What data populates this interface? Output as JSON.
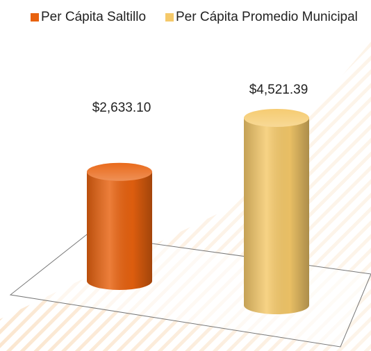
{
  "chart_data": {
    "type": "bar",
    "series": [
      {
        "name": "Per Cápita Saltillo",
        "color": "#e8620f",
        "values": [
          2633.1
        ],
        "value_labels": [
          "$2,633.10"
        ]
      },
      {
        "name": "Per Cápita Promedio Municipal",
        "color": "#f5c96a",
        "values": [
          4521.39
        ],
        "value_labels": [
          "$4,521.39"
        ]
      }
    ],
    "legend": "top"
  }
}
